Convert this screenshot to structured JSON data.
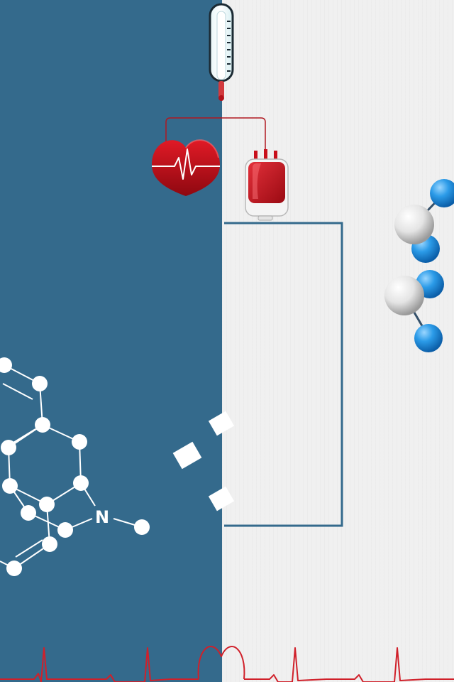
{
  "colors": {
    "left_panel": "#346a8c",
    "right_panel": "#f0f0f0",
    "frame_line": "#346a8c",
    "ecg_line": "#d0202a",
    "heart": "#c8101c",
    "blood": "#c8101c",
    "atom_white": "#ffffff",
    "atom_blue": "#1e90e8",
    "atom_grey": "#e0e0e0"
  },
  "molecule": {
    "nitrogen_label": "N"
  },
  "icons": {
    "thermometer": "thermometer-icon",
    "heart": "heart-icon",
    "blood_bag": "blood-bag-icon",
    "molecule": "molecule-icon",
    "ecg": "ecg-line-icon"
  }
}
